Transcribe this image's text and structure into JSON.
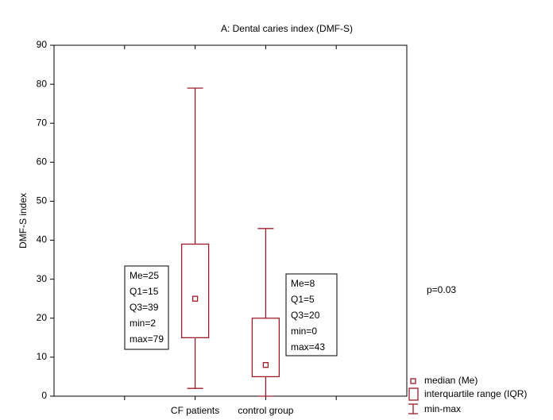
{
  "chart_data": {
    "type": "box",
    "title": "A: Dental caries index (DMF-S)",
    "y_label": "DMF-S index",
    "categories": [
      "CF patients",
      "control group"
    ],
    "median": [
      25,
      8
    ],
    "q1": [
      15,
      5
    ],
    "q3": [
      39,
      20
    ],
    "min": [
      2,
      0
    ],
    "max": [
      79,
      43
    ],
    "color": "#9b1b2a",
    "ylim": [
      0,
      90
    ],
    "yticks": [
      0,
      10,
      20,
      30,
      40,
      50,
      60,
      70,
      80,
      90
    ],
    "annotations": [
      [
        "Me=25",
        "Q1=15",
        "Q3=39",
        "min=2",
        "max=79"
      ],
      [
        "Me=8",
        "Q1=5",
        "Q3=20",
        "min=0",
        "max=43"
      ]
    ],
    "p_label": "p=0.03",
    "legend": {
      "median": "median (Me)",
      "iqr": "interquartile range (IQR)",
      "range": "min-max"
    }
  }
}
